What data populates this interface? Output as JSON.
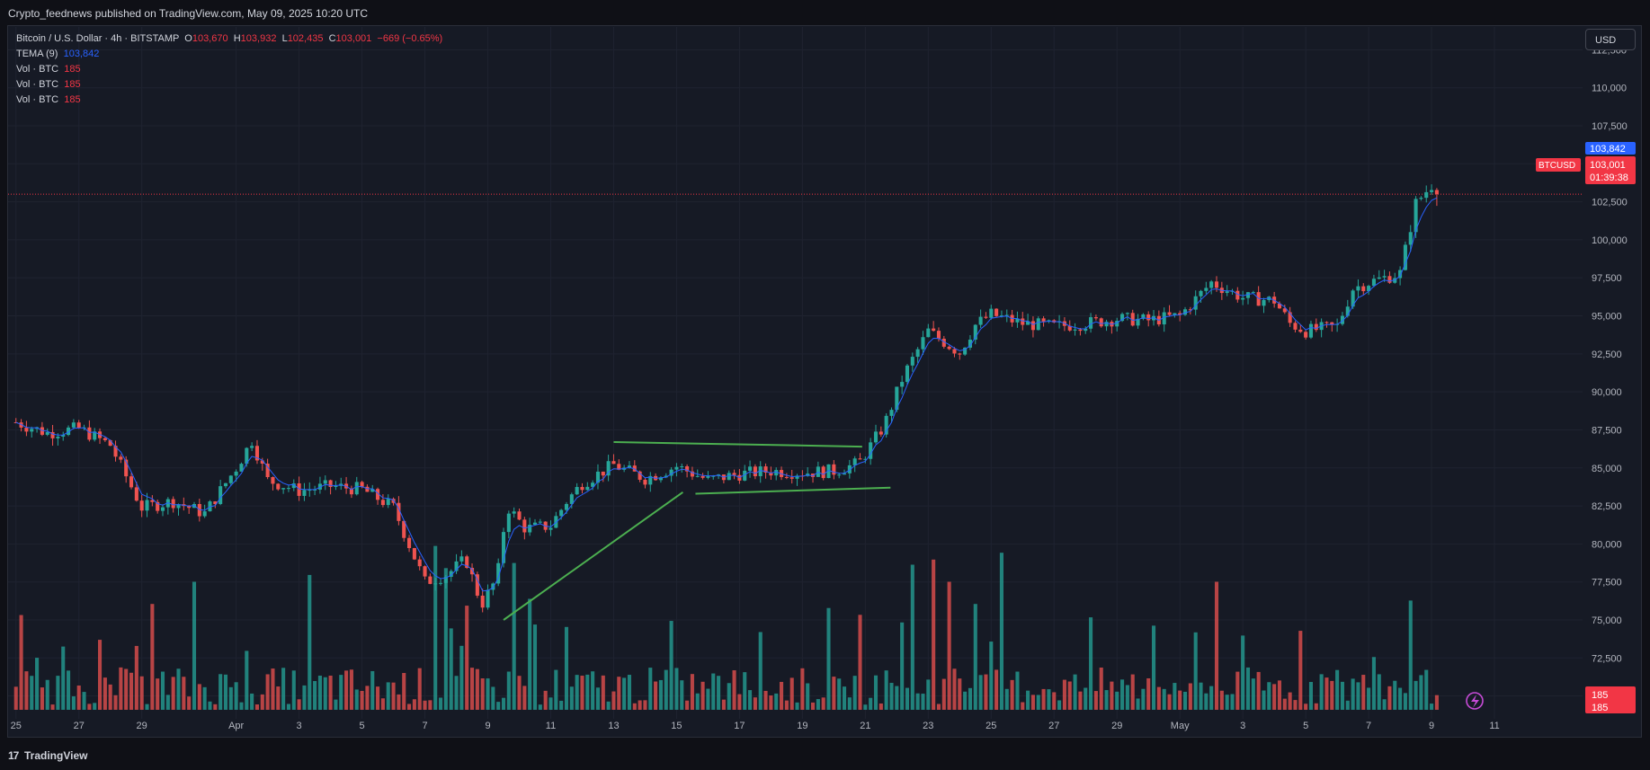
{
  "header": {
    "publish_text": "Crypto_feednews published on TradingView.com, May 09, 2025 10:20 UTC"
  },
  "legend": {
    "symbol": "Bitcoin / U.S. Dollar · 4h · BITSTAMP",
    "open_label": "O",
    "open": "103,670",
    "high_label": "H",
    "high": "103,932",
    "low_label": "L",
    "low": "102,435",
    "close_label": "C",
    "close": "103,001",
    "change": "−669 (−0.65%)",
    "indicators": [
      {
        "name": "TEMA (9)",
        "value": "103,842",
        "color": "#2962ff"
      },
      {
        "name": "Vol · BTC",
        "value": "185",
        "color": "#f23645"
      },
      {
        "name": "Vol · BTC",
        "value": "185",
        "color": "#f23645"
      },
      {
        "name": "Vol · BTC",
        "value": "185",
        "color": "#f23645"
      }
    ]
  },
  "currency_button": "USD",
  "footer": {
    "brand": "TradingView",
    "logo_glyph": "17"
  },
  "colors": {
    "up": "#26a69a",
    "down": "#ef5350",
    "tema": "#2962ff",
    "trendline": "#4caf50",
    "background": "#161a25",
    "grid": "#1f2330"
  },
  "chart_data": {
    "type": "candlestick",
    "title": "Bitcoin / U.S. Dollar · 4h · BITSTAMP",
    "xlabel": "",
    "ylabel": "",
    "ylim": [
      68500,
      114000
    ],
    "y_ticks": [
      70000,
      72500,
      75000,
      77500,
      80000,
      82500,
      85000,
      87500,
      90000,
      92500,
      95000,
      97500,
      100000,
      102500,
      105000,
      107500,
      110000,
      112500
    ],
    "y_tick_labels": [
      "70,000",
      "72,500",
      "75,000",
      "77,500",
      "80,000",
      "82,500",
      "85,000",
      "87,500",
      "90,000",
      "92,500",
      "95,000",
      "97,500",
      "100,000",
      "102,500",
      "105,000",
      "107,500",
      "110,000",
      "112,500"
    ],
    "x_ticks": [
      {
        "day": 0,
        "label": "25"
      },
      {
        "day": 2,
        "label": "27"
      },
      {
        "day": 4,
        "label": "29"
      },
      {
        "day": 7,
        "label": "Apr"
      },
      {
        "day": 9,
        "label": "3"
      },
      {
        "day": 11,
        "label": "5"
      },
      {
        "day": 13,
        "label": "7"
      },
      {
        "day": 15,
        "label": "9"
      },
      {
        "day": 17,
        "label": "11"
      },
      {
        "day": 19,
        "label": "13"
      },
      {
        "day": 21,
        "label": "15"
      },
      {
        "day": 23,
        "label": "17"
      },
      {
        "day": 25,
        "label": "19"
      },
      {
        "day": 27,
        "label": "21"
      },
      {
        "day": 29,
        "label": "23"
      },
      {
        "day": 31,
        "label": "25"
      },
      {
        "day": 33,
        "label": "27"
      },
      {
        "day": 35,
        "label": "29"
      },
      {
        "day": 37,
        "label": "May"
      },
      {
        "day": 39,
        "label": "3"
      },
      {
        "day": 41,
        "label": "5"
      },
      {
        "day": 43,
        "label": "7"
      },
      {
        "day": 45,
        "label": "9"
      },
      {
        "day": 47,
        "label": "11"
      }
    ],
    "x_range_days": [
      -0.25,
      49.8
    ],
    "candles_per_day": 6,
    "close_anchors": [
      [
        0,
        88000
      ],
      [
        1,
        87300
      ],
      [
        2,
        87600
      ],
      [
        3,
        86500
      ],
      [
        4,
        82400
      ],
      [
        5,
        82800
      ],
      [
        6,
        82000
      ],
      [
        7,
        85000
      ],
      [
        7.5,
        86800
      ],
      [
        8,
        84200
      ],
      [
        9,
        83500
      ],
      [
        10,
        83800
      ],
      [
        11,
        83600
      ],
      [
        12,
        82400
      ],
      [
        13,
        77500
      ],
      [
        13.7,
        78000
      ],
      [
        14.3,
        79000
      ],
      [
        14.8,
        76000
      ],
      [
        15.3,
        77800
      ],
      [
        15.6,
        82500
      ],
      [
        16.2,
        81000
      ],
      [
        17,
        81200
      ],
      [
        17.5,
        82800
      ],
      [
        18,
        84000
      ],
      [
        19,
        85200
      ],
      [
        20,
        84300
      ],
      [
        21,
        85100
      ],
      [
        22,
        84200
      ],
      [
        23,
        84600
      ],
      [
        24,
        84800
      ],
      [
        25,
        84700
      ],
      [
        26,
        84800
      ],
      [
        26.8,
        85300
      ],
      [
        27.6,
        87800
      ],
      [
        28.2,
        91000
      ],
      [
        29,
        94000
      ],
      [
        29.7,
        93000
      ],
      [
        30,
        92600
      ],
      [
        30.5,
        94400
      ],
      [
        31,
        95100
      ],
      [
        32,
        94500
      ],
      [
        33,
        94300
      ],
      [
        34,
        94500
      ],
      [
        35,
        94800
      ],
      [
        36,
        94700
      ],
      [
        37,
        95000
      ],
      [
        38,
        97200
      ],
      [
        39,
        96200
      ],
      [
        40,
        96000
      ],
      [
        40.5,
        94500
      ],
      [
        41,
        94000
      ],
      [
        42,
        94300
      ],
      [
        42.5,
        96800
      ],
      [
        43,
        97200
      ],
      [
        44,
        97800
      ],
      [
        44.5,
        102400
      ],
      [
        45,
        103600
      ],
      [
        45.2,
        103001
      ]
    ],
    "volume_max": 60000,
    "volume_spikes": [
      {
        "day": 4.4,
        "height": 0.62
      },
      {
        "day": 5.7,
        "height": 0.75
      },
      {
        "day": 9.4,
        "height": 0.79
      },
      {
        "day": 13.4,
        "height": 0.96
      },
      {
        "day": 13.6,
        "height": 0.83
      },
      {
        "day": 14.4,
        "height": 0.61
      },
      {
        "day": 15.8,
        "height": 0.86
      },
      {
        "day": 16.4,
        "height": 0.65
      },
      {
        "day": 28.5,
        "height": 0.85
      },
      {
        "day": 29.2,
        "height": 0.88
      },
      {
        "day": 29.6,
        "height": 0.75
      },
      {
        "day": 30.5,
        "height": 0.62
      },
      {
        "day": 31.3,
        "height": 0.92
      },
      {
        "day": 38.1,
        "height": 0.75
      },
      {
        "day": 44.4,
        "height": 0.64
      }
    ],
    "trendlines": [
      {
        "from": {
          "day": 15.5,
          "price": 75000
        },
        "to": {
          "day": 21.2,
          "price": 83400
        }
      },
      {
        "from": {
          "day": 19.0,
          "price": 86700
        },
        "to": {
          "day": 26.9,
          "price": 86400
        }
      },
      {
        "from": {
          "day": 21.6,
          "price": 83300
        },
        "to": {
          "day": 27.8,
          "price": 83700
        }
      }
    ],
    "price_line": 103001,
    "labels": {
      "tema_value": "103,842",
      "symbol_tag": "BTCUSD",
      "last_price": "103,001",
      "countdown": "01:39:38",
      "volume_value_1": "185",
      "volume_value_2": "185"
    }
  }
}
